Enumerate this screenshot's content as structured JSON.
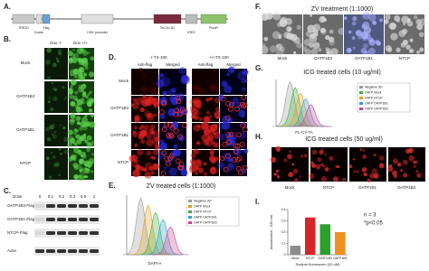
{
  "panel_labels": [
    "A.",
    "B.",
    "C.",
    "D.",
    "E.",
    "F.",
    "G.",
    "H.",
    "I."
  ],
  "a": {
    "elements": [
      "TRE3G",
      "Kozak",
      "Flag",
      "CMV promoter",
      "Tet-On 3G",
      "IRES",
      "PuroR"
    ]
  },
  "b": {
    "columns": [
      "Dox -/-",
      "Dox +/+"
    ],
    "rows": [
      "Mock",
      "OATP1B3",
      "OATP1B1",
      "NTCP"
    ]
  },
  "c": {
    "dose_label": "Dose",
    "doses": [
      "0",
      "0.1",
      "0.2",
      "0.3",
      "0.5",
      "1"
    ],
    "bands": [
      "OATP1B3-Flag",
      "OATP1B1-Flag",
      "NTCP-Flag",
      "Actin"
    ]
  },
  "d": {
    "conditions": [
      "-/-TX-100",
      "+/+TX-100"
    ],
    "channels": [
      "Anti-flag",
      "Merged"
    ],
    "rows": [
      "Mock",
      "OATP1B3",
      "OATP1B1",
      "NTCP"
    ]
  },
  "e": {
    "title": "ZV treated cells (1:1000)",
    "x_label": "DAPI-A",
    "legend": [
      "Negative ctrl",
      "OATP Mock",
      "OATP NTCP",
      "OATP OATP1B1",
      "OATP OATP1B3"
    ]
  },
  "f": {
    "title": "ZV treatment (1:1000)",
    "labels": [
      "Mock",
      "OATP1B3",
      "OATP1B1",
      "NTCP"
    ]
  },
  "g": {
    "title": "ICG  treated cells (10 ug/ml)",
    "x_label": "FL-CY-7A",
    "legend": [
      "Negative ctrl",
      "OATP Mock",
      "OATP NTCP",
      "OATP OATP1B1",
      "OATP OATP1B3"
    ]
  },
  "h": {
    "title": "ICG  treated cells (50 ug/ml)",
    "labels": [
      "Mock",
      "NTCP",
      "OATP1B1",
      "OATP1B3"
    ]
  },
  "chart_data": {
    "type": "bar",
    "categories": [
      "Mock",
      "NTCP",
      "OATP1B1",
      "OATP1B3"
    ],
    "values": [
      0.08,
      0.33,
      0.27,
      0.2
    ],
    "colors": [
      "#8c8c8c",
      "#d62728",
      "#2ca02c",
      "#f0901e"
    ],
    "ylim": [
      0,
      0.4
    ],
    "yticks": [
      0,
      0.1,
      0.2,
      0.3,
      0.4
    ],
    "y_label": "Absorbance - 535 nm",
    "x_label": "Sodium fluorescein (20 uM)",
    "annotations": [
      "n = 3",
      "*p<0.05"
    ]
  }
}
